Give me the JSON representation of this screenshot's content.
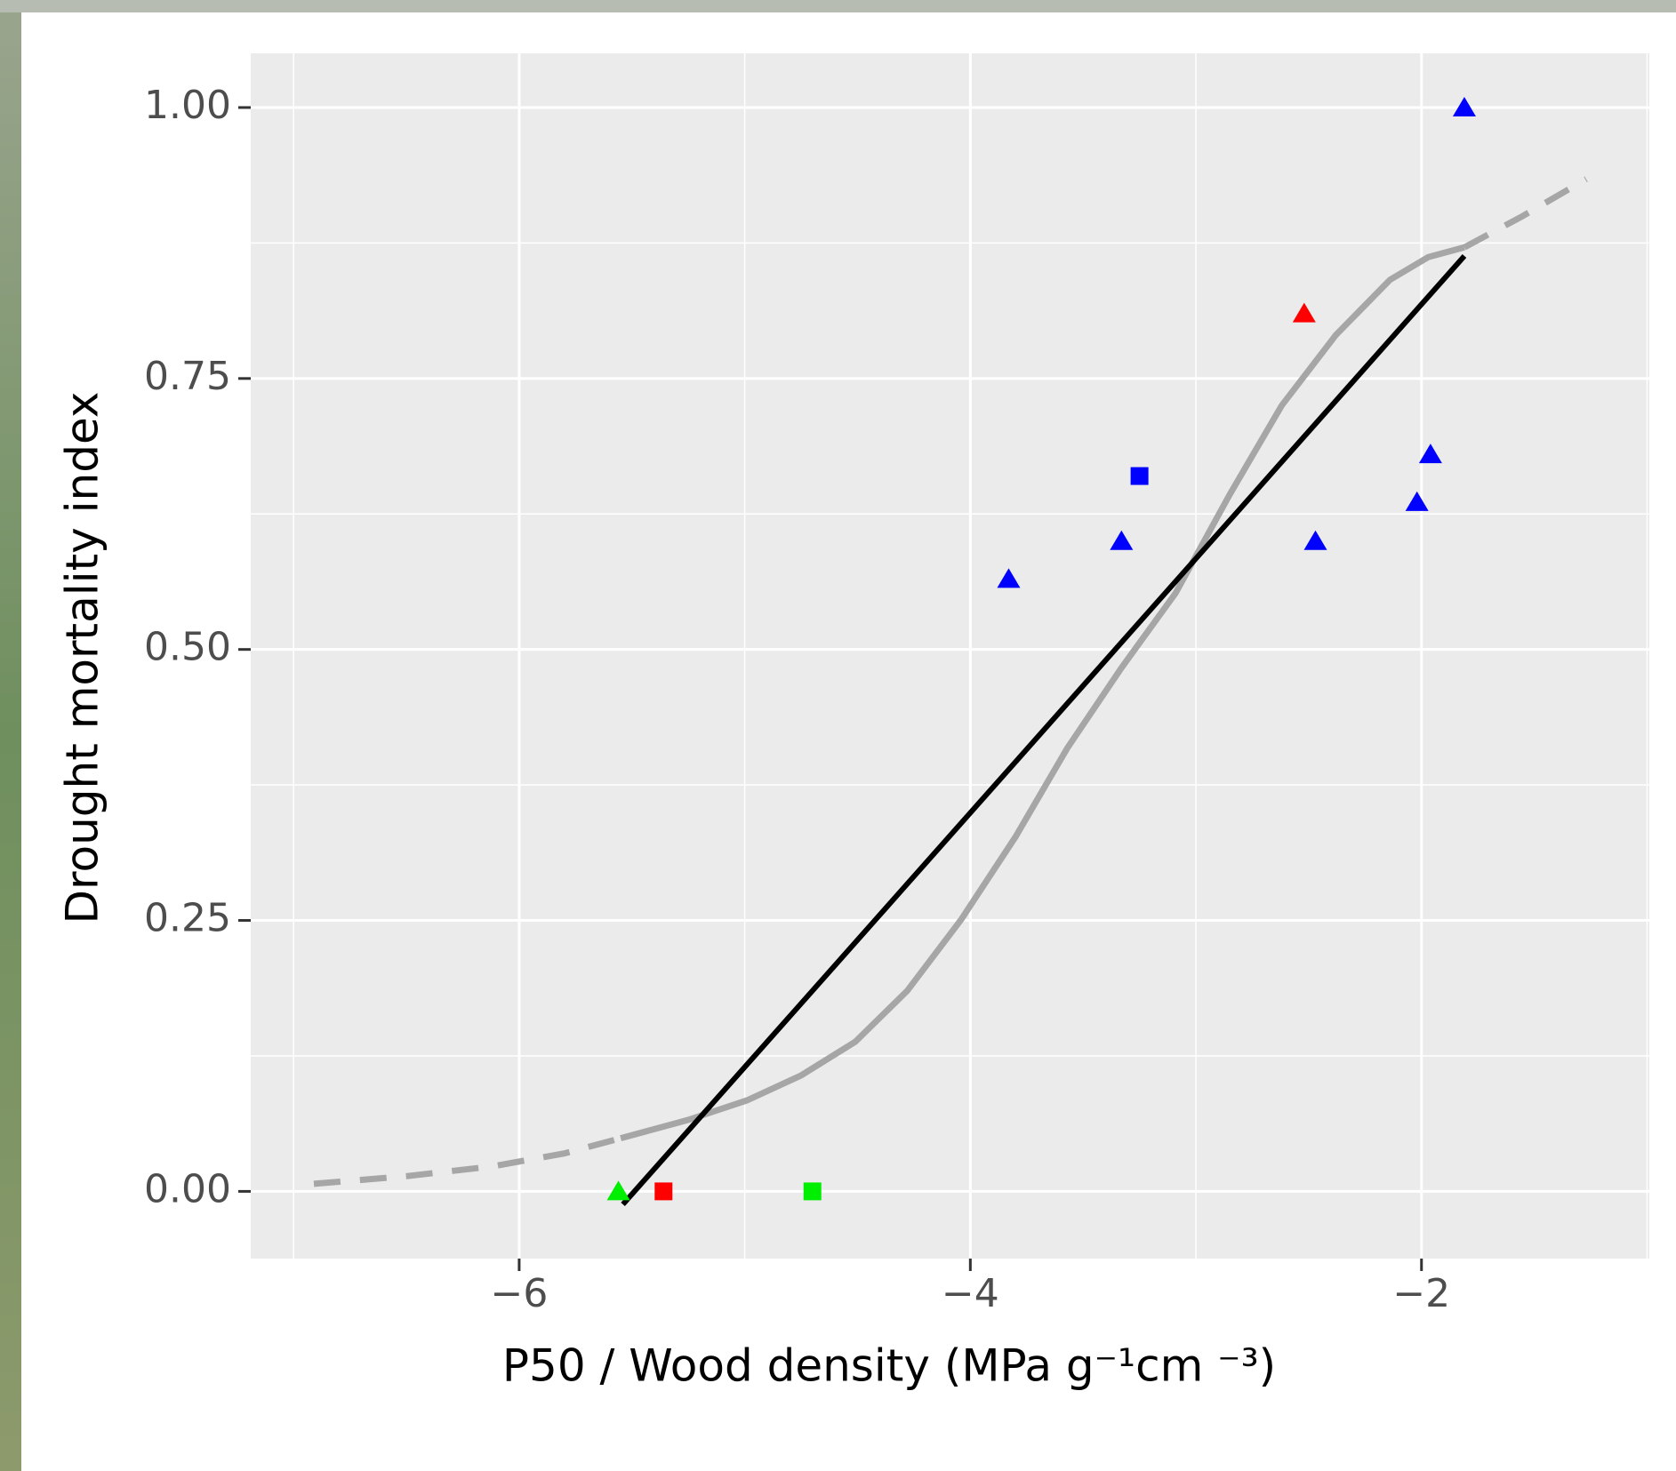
{
  "chart_data": {
    "type": "scatter",
    "x_label": "P50 / Wood density (MPa g⁻¹cm ⁻³)",
    "y_label": "Drought mortality index",
    "xlim": [
      -7.19,
      -0.99
    ],
    "ylim": [
      -0.062,
      1.05
    ],
    "xticks": [
      {
        "value": -6,
        "label": "−6"
      },
      {
        "value": -4,
        "label": "−4"
      },
      {
        "value": -2,
        "label": "−2"
      }
    ],
    "yticks": [
      {
        "value": 0,
        "label": "0.00"
      },
      {
        "value": 0.25,
        "label": "0.25"
      },
      {
        "value": 0.5,
        "label": "0.50"
      },
      {
        "value": 0.75,
        "label": "0.75"
      },
      {
        "value": 1,
        "label": "1.00"
      }
    ],
    "minor_xticks": [
      -7,
      -5,
      -3,
      -1
    ],
    "minor_yticks": [
      0.125,
      0.375,
      0.625,
      0.875
    ],
    "grid": true,
    "series": [
      {
        "kind": "point",
        "marker": "triangle",
        "color": "#0000ff",
        "x": [
          -1.81,
          -3.83,
          -3.33,
          -2.47,
          -2.02,
          -1.96
        ],
        "values": [
          1.0,
          0.565,
          0.6,
          0.6,
          0.636,
          0.68
        ]
      },
      {
        "kind": "point",
        "marker": "square",
        "color": "#0000ff",
        "x": [
          -3.25
        ],
        "values": [
          0.66
        ]
      },
      {
        "kind": "point",
        "marker": "triangle",
        "color": "#ff0000",
        "x": [
          -2.52
        ],
        "values": [
          0.81
        ]
      },
      {
        "kind": "point",
        "marker": "square",
        "color": "#ff0000",
        "x": [
          -5.36
        ],
        "values": [
          0
        ]
      },
      {
        "kind": "point",
        "marker": "triangle",
        "color": "#00ee00",
        "x": [
          -5.56
        ],
        "values": [
          0
        ]
      },
      {
        "kind": "point",
        "marker": "square",
        "color": "#00ee00",
        "x": [
          -4.7
        ],
        "values": [
          0
        ]
      },
      {
        "kind": "line",
        "style": "dashed",
        "color": "#a6a6a6",
        "x": [
          -6.91,
          -6.5,
          -6.12,
          -5.8,
          -5.55
        ],
        "values": [
          0.007,
          0.014,
          0.023,
          0.035,
          0.049
        ]
      },
      {
        "kind": "line",
        "style": "solid",
        "color": "#a6a6a6",
        "x": [
          -5.55,
          -5.25,
          -4.99,
          -4.75,
          -4.51,
          -4.28,
          -4.04,
          -3.8,
          -3.57,
          -3.33,
          -3.09,
          -2.85,
          -2.62,
          -2.38,
          -2.14,
          -1.97,
          -1.81
        ],
        "values": [
          0.049,
          0.066,
          0.084,
          0.107,
          0.138,
          0.185,
          0.251,
          0.327,
          0.409,
          0.483,
          0.552,
          0.643,
          0.725,
          0.79,
          0.841,
          0.862,
          0.871
        ]
      },
      {
        "kind": "line",
        "style": "dashed",
        "color": "#a6a6a6",
        "x": [
          -1.81,
          -1.55,
          -1.27
        ],
        "values": [
          0.871,
          0.9,
          0.934
        ]
      },
      {
        "kind": "line",
        "style": "solid",
        "color": "#000000",
        "x": [
          -5.54,
          -1.81
        ],
        "values": [
          -0.012,
          0.863
        ]
      }
    ]
  }
}
